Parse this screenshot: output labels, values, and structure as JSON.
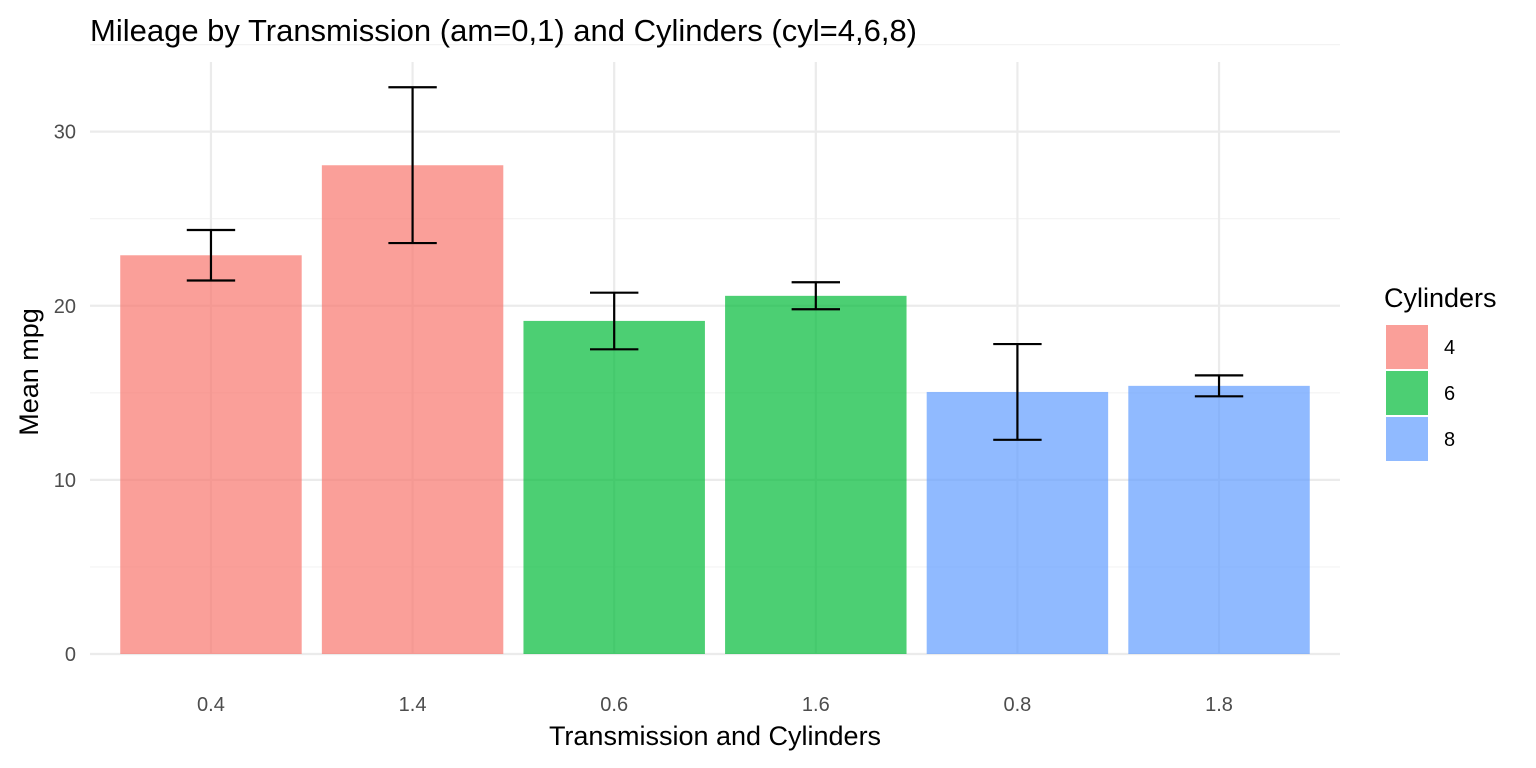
{
  "chart_data": {
    "type": "bar",
    "title": "Mileage by Transmission (am=0,1) and Cylinders (cyl=4,6,8)",
    "xlabel": "Transmission and Cylinders",
    "ylabel": "Mean mpg",
    "categories": [
      "0.4",
      "1.4",
      "0.6",
      "1.6",
      "0.8",
      "1.8"
    ],
    "values": [
      22.9,
      28.07,
      19.13,
      20.57,
      15.05,
      15.4
    ],
    "error_low": [
      21.45,
      23.6,
      17.5,
      19.8,
      12.3,
      14.8
    ],
    "error_high": [
      24.35,
      32.55,
      20.75,
      21.35,
      17.8,
      16.0
    ],
    "group": [
      "4",
      "4",
      "6",
      "6",
      "8",
      "8"
    ],
    "ylim": [
      0,
      34
    ],
    "yticks": [
      0,
      10,
      20,
      30
    ],
    "grid": true,
    "legend": {
      "title": "Cylinders",
      "position": "right",
      "entries": [
        {
          "label": "4",
          "color": "#F8766D"
        },
        {
          "label": "6",
          "color": "#00BA38"
        },
        {
          "label": "8",
          "color": "#619CFF"
        }
      ]
    },
    "bar_opacity": 0.7
  }
}
